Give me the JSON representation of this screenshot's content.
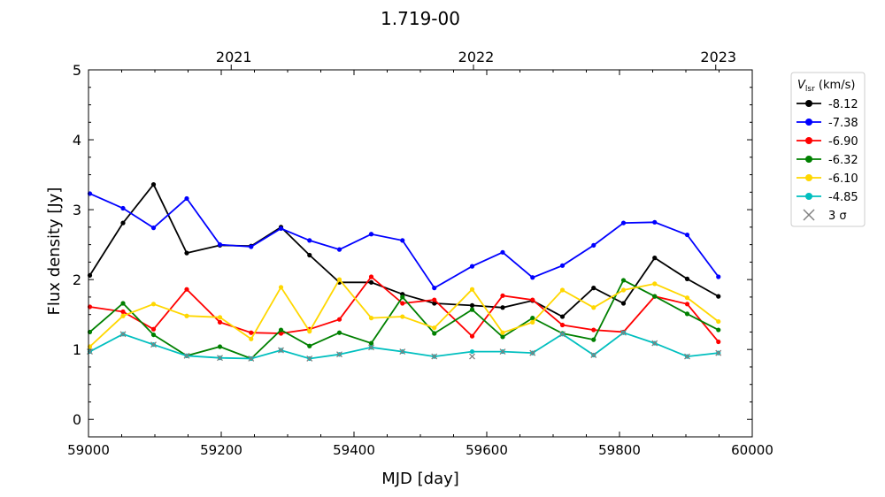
{
  "chart_data": {
    "type": "line",
    "title": "1.719-00",
    "xlabel": "MJD [day]",
    "ylabel": "Flux density [Jy]",
    "xlim": [
      59000,
      60000
    ],
    "ylim": [
      -0.25,
      5
    ],
    "xticks": [
      59000,
      59200,
      59400,
      59600,
      59800,
      60000
    ],
    "yticks": [
      0,
      1,
      2,
      3,
      4,
      5
    ],
    "top_axis": {
      "ticks": [
        {
          "label": "2021",
          "mjd": 59215
        },
        {
          "label": "2022",
          "mjd": 59580
        },
        {
          "label": "2023",
          "mjd": 59945
        }
      ]
    },
    "grid": false,
    "legend": {
      "placement": "outside-right",
      "title_main": "V",
      "title_sub": "lsr",
      "title_unit": " (km/s)",
      "sigma_label": "3 σ"
    },
    "x": [
      59002,
      59052,
      59098,
      59148,
      59198,
      59245,
      59290,
      59333,
      59378,
      59426,
      59473,
      59521,
      59578,
      59624,
      59669,
      59714,
      59761,
      59806,
      59853,
      59902,
      59949
    ],
    "series": [
      {
        "name": "-8.12",
        "color": "#000000",
        "values": [
          2.06,
          2.81,
          3.36,
          2.38,
          2.49,
          2.48,
          2.75,
          2.35,
          1.96,
          1.96,
          1.79,
          1.66,
          1.63,
          1.6,
          1.7,
          1.47,
          1.88,
          1.66,
          2.31,
          2.01,
          1.76
        ]
      },
      {
        "name": "-7.38",
        "color": "#0000ff",
        "values": [
          3.23,
          3.02,
          2.74,
          3.16,
          2.5,
          2.47,
          2.73,
          2.56,
          2.43,
          2.65,
          2.56,
          1.88,
          2.19,
          2.39,
          2.03,
          2.2,
          2.49,
          2.81,
          2.82,
          2.64,
          2.04
        ]
      },
      {
        "name": "-6.90",
        "color": "#ff0000",
        "values": [
          1.61,
          1.54,
          1.29,
          1.86,
          1.39,
          1.24,
          1.23,
          1.29,
          1.43,
          2.04,
          1.66,
          1.71,
          1.19,
          1.77,
          1.71,
          1.35,
          1.28,
          1.25,
          1.76,
          1.65,
          1.11
        ]
      },
      {
        "name": "-6.32",
        "color": "#008000",
        "values": [
          1.25,
          1.66,
          1.21,
          0.91,
          1.04,
          0.87,
          1.28,
          1.05,
          1.24,
          1.09,
          1.75,
          1.23,
          1.57,
          1.18,
          1.45,
          1.23,
          1.14,
          1.99,
          1.76,
          1.51,
          1.28
        ]
      },
      {
        "name": "-6.10",
        "color": "#ffd700",
        "values": [
          1.04,
          1.48,
          1.65,
          1.48,
          1.46,
          1.15,
          1.89,
          1.26,
          2.0,
          1.45,
          1.47,
          1.31,
          1.86,
          1.24,
          1.39,
          1.85,
          1.6,
          1.85,
          1.94,
          1.74,
          1.4
        ]
      },
      {
        "name": "-4.85",
        "color": "#00bfbf",
        "values": [
          0.97,
          1.22,
          1.07,
          0.91,
          0.88,
          0.87,
          0.99,
          0.87,
          0.93,
          1.03,
          0.97,
          0.9,
          0.97,
          0.97,
          0.95,
          1.22,
          0.92,
          1.24,
          1.09,
          0.9,
          0.95
        ]
      }
    ],
    "sigma3": [
      {
        "x": 59002,
        "y": 0.97
      },
      {
        "x": 59052,
        "y": 1.22
      },
      {
        "x": 59098,
        "y": 1.07
      },
      {
        "x": 59148,
        "y": 0.91
      },
      {
        "x": 59198,
        "y": 0.88
      },
      {
        "x": 59245,
        "y": 0.87
      },
      {
        "x": 59290,
        "y": 0.99
      },
      {
        "x": 59333,
        "y": 0.87
      },
      {
        "x": 59378,
        "y": 0.93
      },
      {
        "x": 59426,
        "y": 1.03
      },
      {
        "x": 59473,
        "y": 0.97
      },
      {
        "x": 59521,
        "y": 0.9
      },
      {
        "x": 59578,
        "y": 0.9
      },
      {
        "x": 59624,
        "y": 0.97
      },
      {
        "x": 59669,
        "y": 0.95
      },
      {
        "x": 59714,
        "y": 1.22
      },
      {
        "x": 59761,
        "y": 0.92
      },
      {
        "x": 59806,
        "y": 1.24
      },
      {
        "x": 59853,
        "y": 1.09
      },
      {
        "x": 59902,
        "y": 0.9
      },
      {
        "x": 59949,
        "y": 0.95
      }
    ],
    "sigma_color": "#808080"
  }
}
